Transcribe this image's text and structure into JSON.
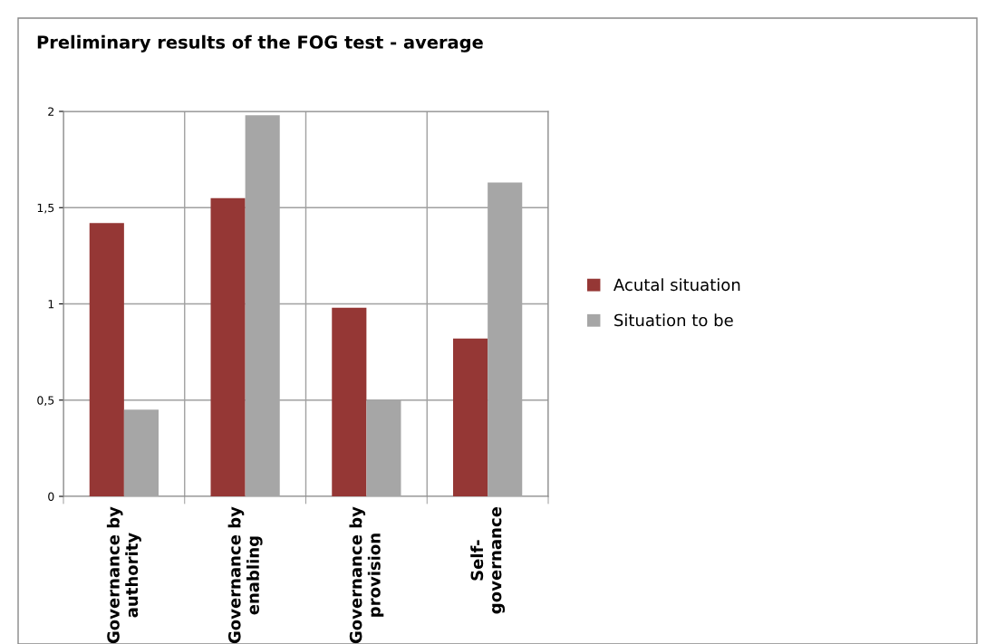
{
  "chart_data": {
    "type": "bar",
    "title": "Preliminary results of the FOG test - average",
    "categories": [
      "Governance by\nauthority",
      "Governance by\nenabling",
      "Governance by\nprovision",
      "Self-\ngovernance"
    ],
    "series": [
      {
        "name": "Acutal situation",
        "color": "#953735",
        "values": [
          1.42,
          1.55,
          0.98,
          0.82
        ]
      },
      {
        "name": "Situation to be",
        "color": "#a6a6a6",
        "values": [
          0.45,
          1.98,
          0.5,
          1.63
        ]
      }
    ],
    "ylim": [
      0,
      2
    ],
    "yticks": [
      0,
      {
        "value": 0.5,
        "label": "0,5"
      },
      1,
      {
        "value": 1.5,
        "label": "1,5"
      },
      2
    ],
    "grid": true,
    "legend": "right"
  }
}
